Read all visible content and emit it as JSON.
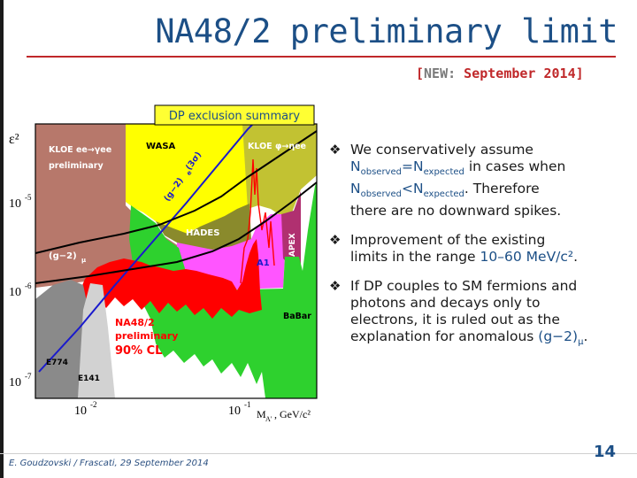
{
  "slide": {
    "title": "NA48/2 preliminary limit",
    "tag_open": "[",
    "tag_new": "NEW:",
    "tag_date": " September 2014]",
    "page_number": "14",
    "footer": "E. Goudzovski / Frascati, 29 September 2014"
  },
  "bullets": {
    "b1": {
      "line1": "We conservatively assume",
      "n1": "N",
      "n1_sub": "observed",
      "eq": "=N",
      "eq_sub": "expected",
      "tail1": " in cases when",
      "n2": "N",
      "n2_sub": "observed",
      "lt": "<N",
      "lt_sub": "expected",
      "tail2": ". Therefore",
      "line4": "there are no downward spikes."
    },
    "b2": {
      "line1": "Improvement of the existing",
      "line2": "limits in the range ",
      "range": "10–60 MeV/c²",
      "end": "."
    },
    "b3": {
      "line1": "If DP couples to SM fermions and",
      "line2": "photons and decays only to",
      "line3": "electrons, it is ruled out as the",
      "line4": "explanation for anomalous ",
      "g2": "(g−2)",
      "g2_sub": "μ",
      "end": "."
    }
  },
  "chart_data": {
    "type": "area",
    "title": "DP exclusion summary",
    "ylabel": "ε²",
    "xlabel": "M",
    "xlabel_sub": "A'",
    "xlabel_unit": ", GeV/c²",
    "xscale": "log",
    "yscale": "log",
    "x_ticks": [
      {
        "label": "10",
        "exp": "-2"
      },
      {
        "label": "10",
        "exp": "-1"
      }
    ],
    "y_ticks": [
      {
        "label": "10",
        "exp": "-5"
      },
      {
        "label": "10",
        "exp": "-6"
      },
      {
        "label": "10",
        "exp": "-7"
      }
    ],
    "regions": [
      {
        "name": "KLOE ee→γee",
        "line2": "preliminary",
        "color": "#b7786b"
      },
      {
        "name": "WASA",
        "color": "#ffff00"
      },
      {
        "name": "KLOE φ→ηee",
        "color": "#c2c232"
      },
      {
        "name": "HADES",
        "color": "#8a8a2c"
      },
      {
        "name": "APEX",
        "color": "#b03070"
      },
      {
        "name": "A1",
        "color": "#ff55ff"
      },
      {
        "name": "BaBar",
        "color": "#2ed12e"
      },
      {
        "name": "E774",
        "color": "#8a8a8a"
      },
      {
        "name": "E141",
        "color": "#d2d2d2"
      }
    ],
    "curves": [
      {
        "name": "(g−2)",
        "sub": "e",
        "suffix": " (3σ)",
        "color": "#1a1acc"
      },
      {
        "name": "(g−2)",
        "sub": "μ",
        "color": "#000000"
      }
    ],
    "result": {
      "label1": "NA48/2",
      "label2": "preliminary",
      "label3": "90% CL",
      "color": "#ff0000"
    },
    "colors": {
      "frame": "#000000",
      "title_box": "#ffff33",
      "title_text": "#1c4f86",
      "result": "#ff0000",
      "region_label": "#ffffff"
    }
  }
}
